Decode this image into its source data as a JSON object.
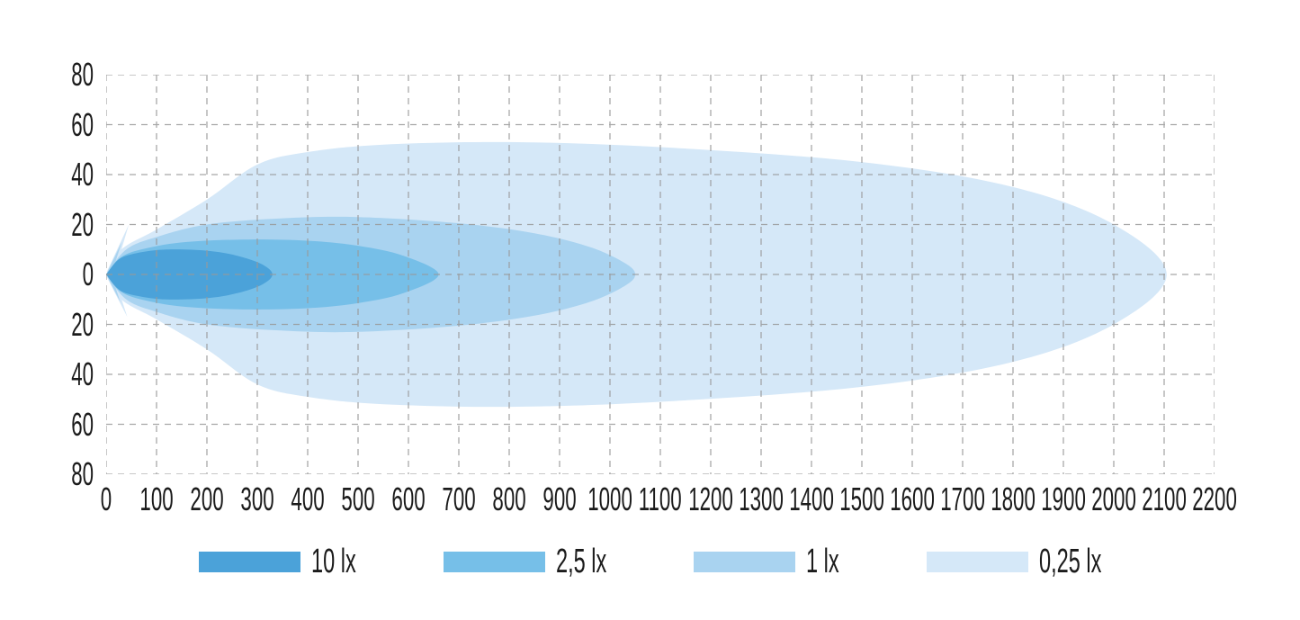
{
  "chart_data": {
    "type": "area",
    "title": "",
    "xlabel": "",
    "ylabel": "",
    "xlim": [
      0,
      2200
    ],
    "ylim": [
      -80,
      80
    ],
    "grid": {
      "dashed": true,
      "color": "#999999",
      "dash": "7 6"
    },
    "x_ticks": [
      0,
      100,
      200,
      300,
      400,
      500,
      600,
      700,
      800,
      900,
      1000,
      1100,
      1200,
      1300,
      1400,
      1500,
      1600,
      1700,
      1800,
      1900,
      2000,
      2100,
      2200
    ],
    "y_ticks": {
      "labels": [
        "80",
        "60",
        "40",
        "20",
        "0",
        "20",
        "40",
        "60",
        "80"
      ],
      "values": [
        80,
        60,
        40,
        20,
        0,
        -20,
        -40,
        -60,
        -80
      ]
    },
    "legend_position": "bottom",
    "contours": [
      {
        "label": "10 lx",
        "color": "#4ba2d9",
        "reach_x": 330,
        "max_half_width": 10,
        "top_profile": [
          [
            0,
            0
          ],
          [
            25,
            6
          ],
          [
            60,
            8.5
          ],
          [
            120,
            10
          ],
          [
            200,
            9.5
          ],
          [
            260,
            7.5
          ],
          [
            310,
            4
          ],
          [
            330,
            0
          ]
        ]
      },
      {
        "label": "2,5 lx",
        "color": "#76bfe8",
        "reach_x": 660,
        "max_half_width": 14,
        "top_profile": [
          [
            0,
            0
          ],
          [
            30,
            7
          ],
          [
            80,
            10.5
          ],
          [
            160,
            13
          ],
          [
            280,
            14
          ],
          [
            400,
            13.5
          ],
          [
            500,
            11.5
          ],
          [
            590,
            7.5
          ],
          [
            660,
            0
          ]
        ]
      },
      {
        "label": "1 lx",
        "color": "#a9d3f0",
        "reach_x": 1050,
        "max_half_width": 23,
        "top_profile": [
          [
            0,
            0
          ],
          [
            40,
            10
          ],
          [
            100,
            15
          ],
          [
            200,
            20
          ],
          [
            350,
            22.5
          ],
          [
            500,
            23
          ],
          [
            700,
            20.5
          ],
          [
            850,
            16.5
          ],
          [
            960,
            11
          ],
          [
            1030,
            4.5
          ],
          [
            1050,
            0
          ]
        ]
      },
      {
        "label": "0,25 lx",
        "color": "#d5e8f8",
        "reach_x": 2105,
        "max_half_width": 53,
        "top_profile": [
          [
            0,
            0
          ],
          [
            30,
            10
          ],
          [
            100,
            18
          ],
          [
            200,
            30
          ],
          [
            300,
            44
          ],
          [
            400,
            49
          ],
          [
            550,
            52
          ],
          [
            800,
            53
          ],
          [
            1100,
            51
          ],
          [
            1500,
            45
          ],
          [
            1800,
            35
          ],
          [
            2000,
            20
          ],
          [
            2105,
            0
          ]
        ]
      }
    ],
    "flare_spikes": [
      {
        "color": "#d5e8f8",
        "points": [
          [
            1,
            1
          ],
          [
            45,
            20
          ],
          [
            20,
            3
          ]
        ]
      },
      {
        "color": "#d5e8f8",
        "points": [
          [
            1,
            -1
          ],
          [
            42,
            -17
          ],
          [
            18,
            -2
          ]
        ]
      },
      {
        "color": "#a9d3f0",
        "points": [
          [
            0,
            0
          ],
          [
            31,
            13
          ],
          [
            13,
            1.5
          ]
        ]
      },
      {
        "color": "#a9d3f0",
        "points": [
          [
            0,
            0
          ],
          [
            28,
            -11
          ],
          [
            12,
            -1
          ]
        ]
      }
    ]
  }
}
